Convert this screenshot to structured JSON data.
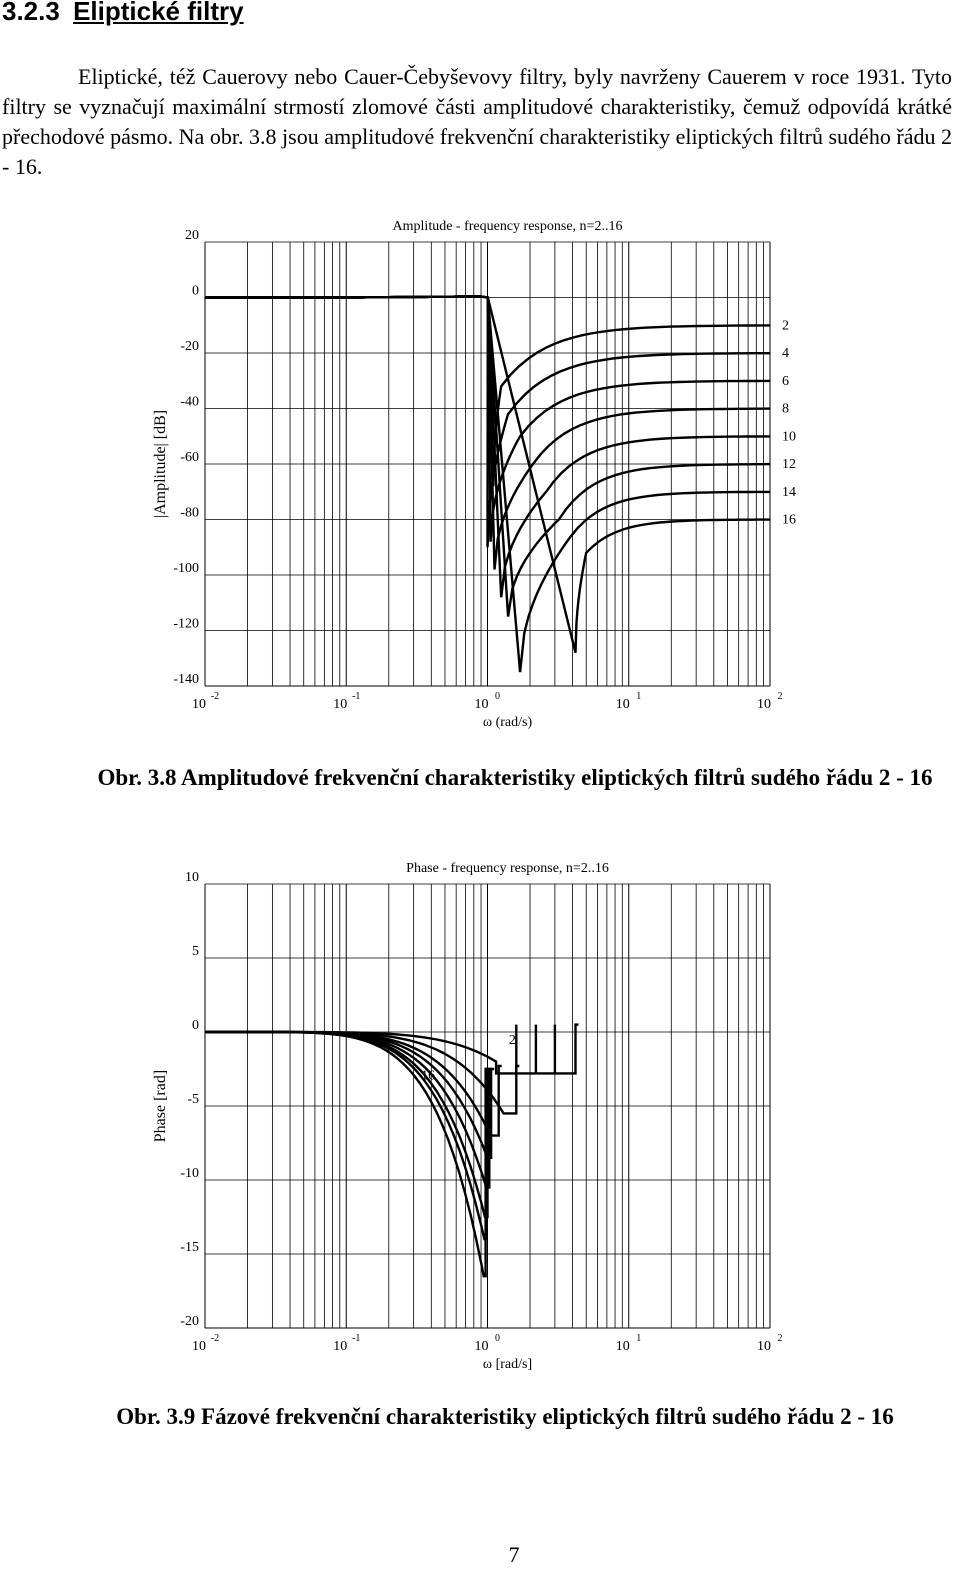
{
  "section": {
    "number": "3.2.3",
    "title": "Eliptické filtry"
  },
  "paragraph": "Eliptické, též Cauerovy nebo Cauer-Čebyševovy filtry, byly navrženy Cauerem v roce 1931. Tyto filtry se vyznačují maximální strmostí zlomové části amplitudové charakteristiky, čemuž odpovídá krátké přechodové pásmo. Na obr. 3.8 jsou amplitudové frekvenční charakteristiky eliptických filtrů sudého řádu 2 - 16.",
  "figures": [
    {
      "caption": "Obr. 3.8 Amplitudové frekvenční charakteristiky eliptických filtrů sudého řádu 2 - 16"
    },
    {
      "caption": "Obr. 3.9 Fázové frekvenční charakteristiky eliptických filtrů sudého řádu 2 - 16"
    }
  ],
  "chart_data": [
    {
      "type": "line",
      "title": "Amplitude - frequency response, n=2..16",
      "xlabel": "ω (rad/s)",
      "ylabel": "|Amplitude| [dB]",
      "x_scale": "log",
      "x_ticks": [
        {
          "base": "10",
          "exp": "-2"
        },
        {
          "base": "10",
          "exp": "-1"
        },
        {
          "base": "10",
          "exp": "0"
        },
        {
          "base": "10",
          "exp": "1"
        },
        {
          "base": "10",
          "exp": "2"
        }
      ],
      "xlim": [
        0.01,
        100
      ],
      "ylim": [
        -140,
        20
      ],
      "y_ticks": [
        "20",
        "0",
        "-20",
        "-40",
        "-60",
        "-80",
        "-100",
        "-120",
        "-140"
      ],
      "grid": true,
      "curve_labels": [
        {
          "text": "2",
          "y": -10
        },
        {
          "text": "4",
          "y": -20
        },
        {
          "text": "6",
          "y": -30
        },
        {
          "text": "8",
          "y": -40
        },
        {
          "text": "10",
          "y": -50
        },
        {
          "text": "12",
          "y": -60
        },
        {
          "text": "14",
          "y": -70
        },
        {
          "text": "16",
          "y": -80
        }
      ],
      "series": [
        {
          "name": "2",
          "passband": 0,
          "cutoff": 1.0,
          "dip_x": 1.1,
          "dip_y": -68,
          "bounce_x": 1.25,
          "bounce_y": -32,
          "stopband": -10
        },
        {
          "name": "4",
          "passband": 0,
          "cutoff": 1.0,
          "dip_x": 1.0,
          "dip_y": -90,
          "bounce_x": 1.4,
          "bounce_y": -42,
          "stopband": -20
        },
        {
          "name": "6",
          "passband": 0,
          "cutoff": 1.0,
          "dip_x": 1.05,
          "dip_y": -88,
          "bounce_x": 1.7,
          "bounce_y": -50,
          "stopband": -30
        },
        {
          "name": "8",
          "passband": 0,
          "cutoff": 1.0,
          "dip_x": 1.12,
          "dip_y": -98,
          "bounce_x": 2.1,
          "bounce_y": -60,
          "stopband": -40
        },
        {
          "name": "10",
          "passband": 0,
          "cutoff": 1.0,
          "dip_x": 1.25,
          "dip_y": -108,
          "bounce_x": 2.6,
          "bounce_y": -70,
          "stopband": -50
        },
        {
          "name": "12",
          "passband": 0,
          "cutoff": 1.0,
          "dip_x": 1.4,
          "dip_y": -115,
          "bounce_x": 3.2,
          "bounce_y": -80,
          "stopband": -60
        },
        {
          "name": "14",
          "passband": 0,
          "cutoff": 1.0,
          "dip_x": 1.7,
          "dip_y": -135,
          "bounce_x": 3.9,
          "bounce_y": -86,
          "stopband": -70
        },
        {
          "name": "16",
          "passband": 0,
          "cutoff": 1.0,
          "dip_x": 4.2,
          "dip_y": -128,
          "bounce_x": 5.0,
          "bounce_y": -92,
          "stopband": -80
        }
      ]
    },
    {
      "type": "line",
      "title": "Phase - frequency response, n=2..16",
      "xlabel": "ω [rad/s]",
      "ylabel": "Phase [rad]",
      "x_scale": "log",
      "x_ticks": [
        {
          "base": "10",
          "exp": "-2"
        },
        {
          "base": "10",
          "exp": "-1"
        },
        {
          "base": "10",
          "exp": "0"
        },
        {
          "base": "10",
          "exp": "1"
        },
        {
          "base": "10",
          "exp": "2"
        }
      ],
      "xlim": [
        0.01,
        100
      ],
      "ylim": [
        -20,
        10
      ],
      "y_ticks": [
        "10",
        "5",
        "0",
        "-5",
        "-10",
        "-15",
        "-20"
      ],
      "grid": true,
      "curve_labels": [
        {
          "text": "2",
          "x": 1.5,
          "y": -0.8
        },
        {
          "text": "16",
          "x": 0.38,
          "y": -3.2
        }
      ],
      "series": [
        {
          "name": "2",
          "min_x": 1.15,
          "min_y": -2.0,
          "wrap_x": [
            1.6,
            2.2,
            3.0,
            4.2
          ],
          "jump_low": -2.8,
          "jump_high": 0.5
        },
        {
          "name": "4",
          "min_x": 1.3,
          "min_y": -5.5,
          "wrap_x": [
            1.6
          ],
          "jump_low": -5.5,
          "jump_high": -2.3
        },
        {
          "name": "6",
          "min_x": 1.05,
          "min_y": -7.0,
          "wrap_x": [
            1.2
          ],
          "jump_low": -7.0,
          "jump_high": -2.3
        },
        {
          "name": "8",
          "min_x": 1.0,
          "min_y": -8.5,
          "wrap_x": [
            1.06
          ],
          "jump_low": -8.5,
          "jump_high": -2.5
        },
        {
          "name": "10",
          "min_x": 0.98,
          "min_y": -10.5,
          "wrap_x": [
            1.03
          ],
          "jump_low": -10.5,
          "jump_high": -2.5
        },
        {
          "name": "12",
          "min_x": 0.96,
          "min_y": -12.5,
          "wrap_x": [
            1.0
          ],
          "jump_low": -12.5,
          "jump_high": -2.5
        },
        {
          "name": "14",
          "min_x": 0.95,
          "min_y": -14.0,
          "wrap_x": [
            0.98
          ],
          "jump_low": -14.0,
          "jump_high": -2.5
        },
        {
          "name": "16",
          "min_x": 0.94,
          "min_y": -16.5,
          "wrap_x": [
            0.97
          ],
          "jump_low": -16.5,
          "jump_high": -2.5
        }
      ]
    }
  ],
  "page_number": "7"
}
